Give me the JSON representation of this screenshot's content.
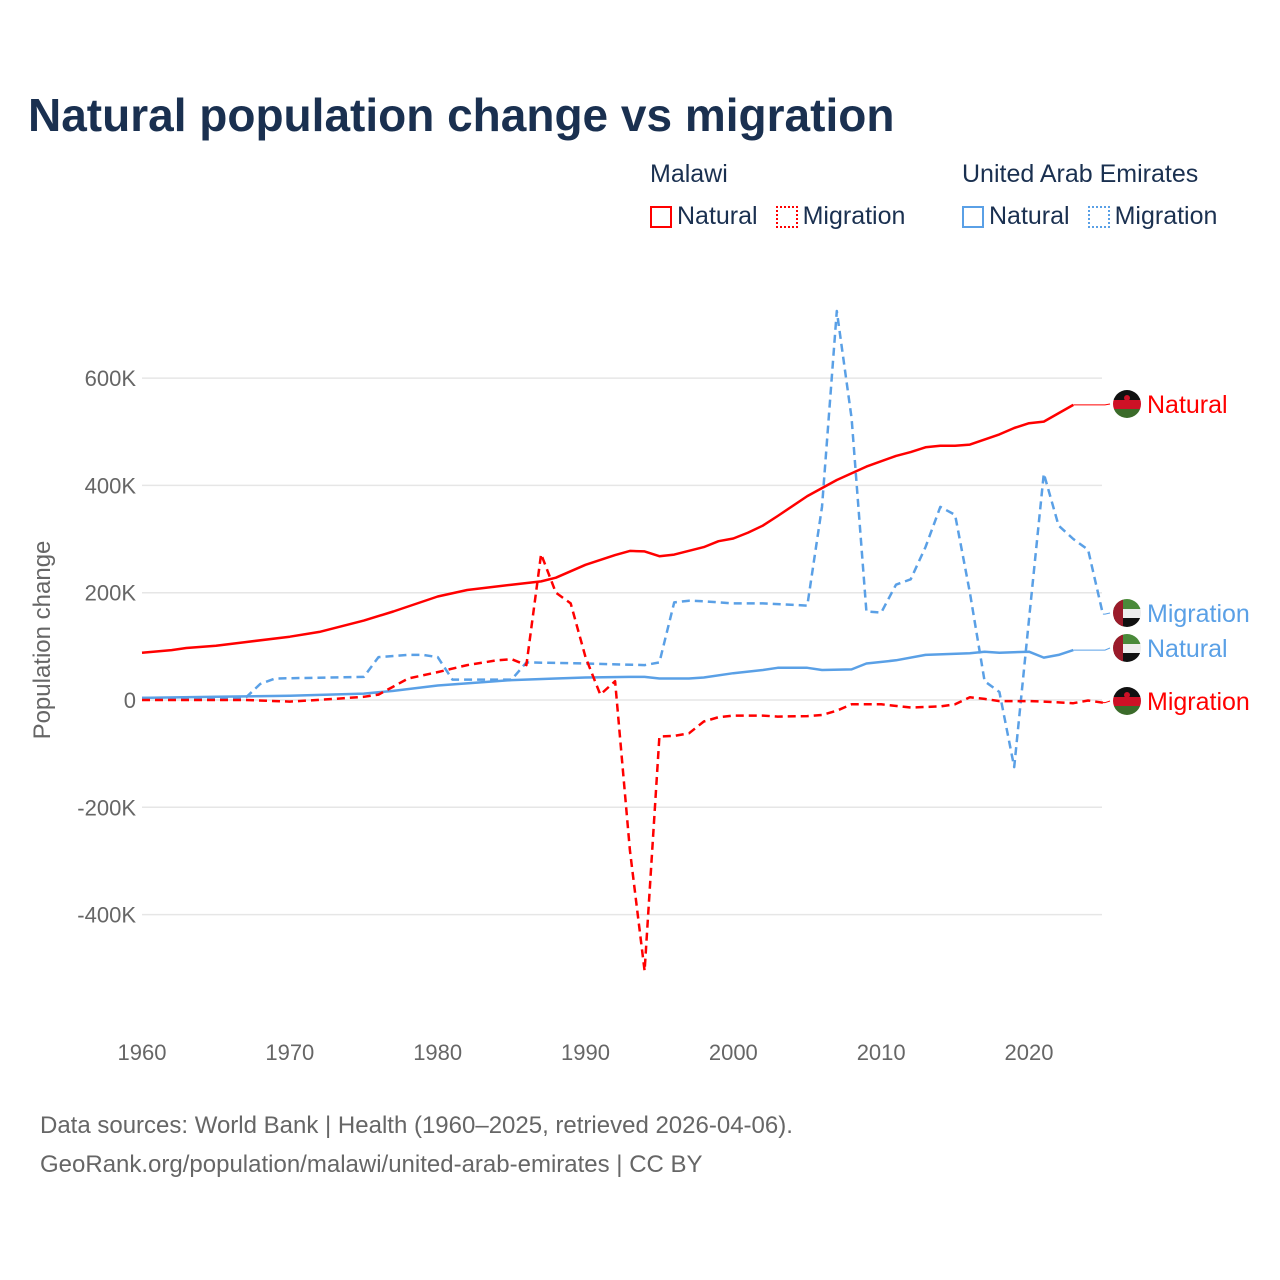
{
  "chart_data": {
    "type": "line",
    "title": "Natural population change vs migration",
    "xlabel": "",
    "ylabel": "Population change",
    "xlim": [
      1960,
      2025
    ],
    "ylim": [
      -600000,
      780000
    ],
    "x_ticks": [
      1960,
      1970,
      1980,
      1990,
      2000,
      2010,
      2020
    ],
    "x_tick_labels": [
      "1960",
      "1970",
      "1980",
      "1990",
      "2000",
      "2010",
      "2020"
    ],
    "y_ticks": [
      -400000,
      -200000,
      0,
      200000,
      400000,
      600000
    ],
    "y_tick_labels": [
      "-400K",
      "-200K",
      "0",
      "200K",
      "400K",
      "600K"
    ],
    "grid": true,
    "legend_position": "top-right",
    "legend_groups": [
      {
        "title": "Malawi",
        "items": [
          "Natural",
          "Migration"
        ]
      },
      {
        "title": "United Arab Emirates",
        "items": [
          "Natural",
          "Migration"
        ]
      }
    ],
    "series": [
      {
        "name": "Natural",
        "country": "Malawi",
        "color": "#ff0000",
        "dash": false,
        "flag": "malawi",
        "points": [
          [
            1960,
            88000
          ],
          [
            1962,
            93000
          ],
          [
            1963,
            97000
          ],
          [
            1965,
            101000
          ],
          [
            1967,
            108000
          ],
          [
            1970,
            118000
          ],
          [
            1972,
            127000
          ],
          [
            1975,
            148000
          ],
          [
            1977,
            165000
          ],
          [
            1980,
            193000
          ],
          [
            1982,
            205000
          ],
          [
            1985,
            215000
          ],
          [
            1987,
            221000
          ],
          [
            1988,
            228000
          ],
          [
            1990,
            252000
          ],
          [
            1992,
            270000
          ],
          [
            1993,
            278000
          ],
          [
            1994,
            277000
          ],
          [
            1995,
            268000
          ],
          [
            1996,
            271000
          ],
          [
            1998,
            285000
          ],
          [
            1999,
            296000
          ],
          [
            2000,
            301000
          ],
          [
            2001,
            312000
          ],
          [
            2002,
            325000
          ],
          [
            2003,
            343000
          ],
          [
            2005,
            380000
          ],
          [
            2007,
            410000
          ],
          [
            2009,
            435000
          ],
          [
            2011,
            455000
          ],
          [
            2012,
            462000
          ],
          [
            2013,
            471000
          ],
          [
            2014,
            474000
          ],
          [
            2015,
            474000
          ],
          [
            2016,
            476000
          ],
          [
            2018,
            495000
          ],
          [
            2019,
            507000
          ],
          [
            2020,
            516000
          ],
          [
            2021,
            519000
          ],
          [
            2023,
            550000
          ]
        ]
      },
      {
        "name": "Migration",
        "country": "Malawi",
        "color": "#ff0000",
        "dash": true,
        "flag": "malawi",
        "points": [
          [
            1960,
            0
          ],
          [
            1967,
            0
          ],
          [
            1970,
            -3000
          ],
          [
            1973,
            2000
          ],
          [
            1975,
            6000
          ],
          [
            1976,
            10000
          ],
          [
            1977,
            25000
          ],
          [
            1978,
            40000
          ],
          [
            1980,
            52000
          ],
          [
            1982,
            65000
          ],
          [
            1984,
            74000
          ],
          [
            1985,
            76000
          ],
          [
            1986,
            65000
          ],
          [
            1987,
            272000
          ],
          [
            1988,
            200000
          ],
          [
            1989,
            180000
          ],
          [
            1990,
            80000
          ],
          [
            1991,
            10000
          ],
          [
            1992,
            35000
          ],
          [
            1993,
            -280000
          ],
          [
            1994,
            -505000
          ],
          [
            1995,
            -68000
          ],
          [
            1996,
            -67000
          ],
          [
            1997,
            -62000
          ],
          [
            1998,
            -40000
          ],
          [
            1999,
            -32000
          ],
          [
            2000,
            -29000
          ],
          [
            2002,
            -29000
          ],
          [
            2003,
            -31000
          ],
          [
            2005,
            -30000
          ],
          [
            2006,
            -28000
          ],
          [
            2007,
            -20000
          ],
          [
            2008,
            -8000
          ],
          [
            2010,
            -8000
          ],
          [
            2012,
            -14000
          ],
          [
            2014,
            -12000
          ],
          [
            2015,
            -8000
          ],
          [
            2016,
            5000
          ],
          [
            2017,
            2000
          ],
          [
            2018,
            -2000
          ],
          [
            2020,
            -2000
          ],
          [
            2021,
            -3000
          ],
          [
            2023,
            -6000
          ],
          [
            2024,
            -1000
          ],
          [
            2025,
            -5000
          ]
        ]
      },
      {
        "name": "Natural",
        "country": "United Arab Emirates",
        "color": "#5aa0e6",
        "dash": false,
        "flag": "uae",
        "points": [
          [
            1960,
            4000
          ],
          [
            1965,
            6000
          ],
          [
            1970,
            8000
          ],
          [
            1975,
            12000
          ],
          [
            1977,
            17000
          ],
          [
            1980,
            27000
          ],
          [
            1983,
            33000
          ],
          [
            1985,
            37000
          ],
          [
            1988,
            40000
          ],
          [
            1990,
            42000
          ],
          [
            1993,
            43000
          ],
          [
            1994,
            43000
          ],
          [
            1995,
            40000
          ],
          [
            1997,
            40000
          ],
          [
            1998,
            42000
          ],
          [
            2000,
            50000
          ],
          [
            2002,
            56000
          ],
          [
            2003,
            60000
          ],
          [
            2005,
            60000
          ],
          [
            2006,
            56000
          ],
          [
            2008,
            57000
          ],
          [
            2009,
            68000
          ],
          [
            2011,
            74000
          ],
          [
            2013,
            84000
          ],
          [
            2016,
            87000
          ],
          [
            2017,
            90000
          ],
          [
            2018,
            88000
          ],
          [
            2020,
            90000
          ],
          [
            2021,
            79000
          ],
          [
            2022,
            84000
          ],
          [
            2023,
            93000
          ]
        ]
      },
      {
        "name": "Migration",
        "country": "United Arab Emirates",
        "color": "#5aa0e6",
        "dash": true,
        "flag": "uae",
        "points": [
          [
            1960,
            4000
          ],
          [
            1967,
            4000
          ],
          [
            1968,
            30000
          ],
          [
            1969,
            40000
          ],
          [
            1975,
            43000
          ],
          [
            1976,
            80000
          ],
          [
            1978,
            84000
          ],
          [
            1979,
            84000
          ],
          [
            1980,
            80000
          ],
          [
            1981,
            38000
          ],
          [
            1985,
            38000
          ],
          [
            1986,
            70000
          ],
          [
            1990,
            68000
          ],
          [
            1994,
            65000
          ],
          [
            1995,
            70000
          ],
          [
            1996,
            182000
          ],
          [
            1997,
            185000
          ],
          [
            1998,
            184000
          ],
          [
            2000,
            180000
          ],
          [
            2002,
            180000
          ],
          [
            2005,
            176000
          ],
          [
            2006,
            360000
          ],
          [
            2007,
            725000
          ],
          [
            2008,
            525000
          ],
          [
            2009,
            165000
          ],
          [
            2010,
            163000
          ],
          [
            2011,
            215000
          ],
          [
            2012,
            225000
          ],
          [
            2013,
            285000
          ],
          [
            2014,
            360000
          ],
          [
            2015,
            345000
          ],
          [
            2016,
            200000
          ],
          [
            2017,
            35000
          ],
          [
            2018,
            15000
          ],
          [
            2019,
            -125000
          ],
          [
            2020,
            150000
          ],
          [
            2021,
            422000
          ],
          [
            2022,
            325000
          ],
          [
            2023,
            300000
          ],
          [
            2024,
            280000
          ],
          [
            2025,
            160000
          ]
        ]
      }
    ]
  },
  "footer": {
    "line1": "Data sources: World Bank | Health (1960–2025, retrieved 2026-04-06).",
    "line2": "GeoRank.org/population/malawi/united-arab-emirates | CC BY"
  }
}
